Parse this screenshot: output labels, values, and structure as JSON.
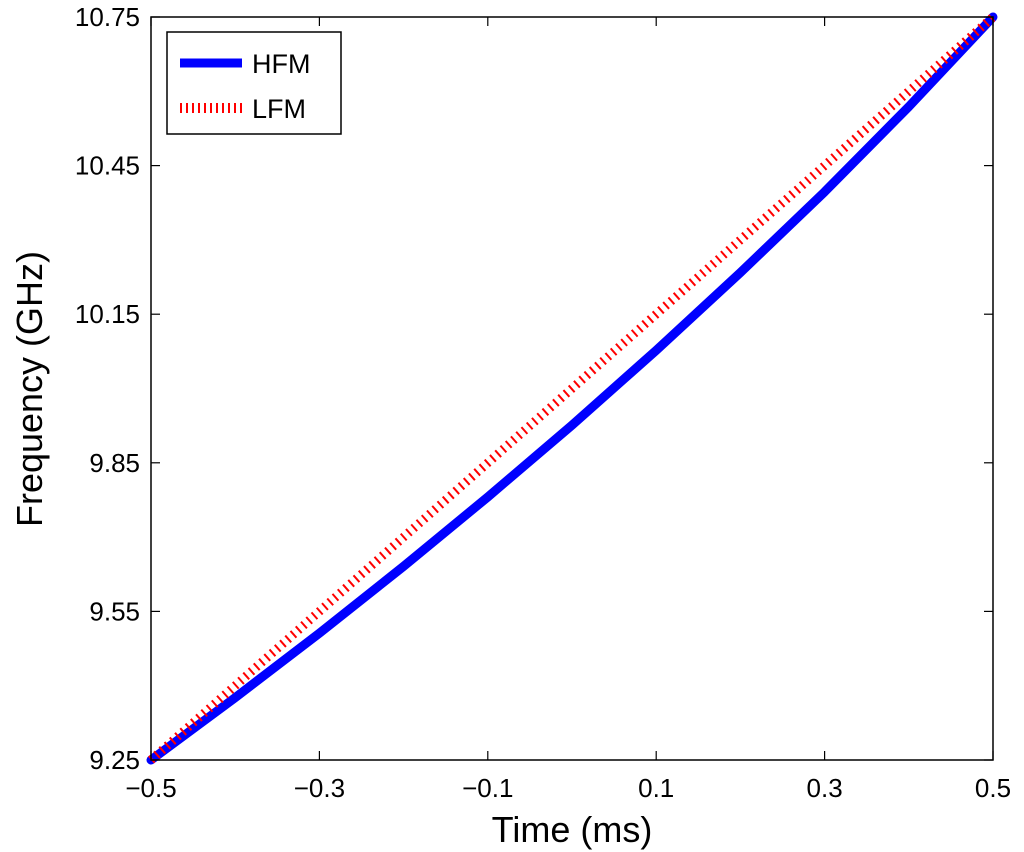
{
  "chart_data": {
    "type": "line",
    "title": "",
    "xlabel": "Time (ms)",
    "ylabel": "Frequency (GHz)",
    "xlim": [
      -0.5,
      0.5
    ],
    "ylim": [
      9.25,
      10.75
    ],
    "xticks": [
      -0.5,
      -0.3,
      -0.1,
      0.1,
      0.3,
      0.5
    ],
    "xtick_labels": [
      "−0.5",
      "−0.3",
      "−0.1",
      "0.1",
      "0.3",
      "0.5"
    ],
    "yticks": [
      9.25,
      9.55,
      9.85,
      10.15,
      10.45,
      10.75
    ],
    "ytick_labels": [
      "9.25",
      "9.55",
      "9.85",
      "10.15",
      "10.45",
      "10.75"
    ],
    "grid": false,
    "legend_position": "top-left",
    "series": [
      {
        "name": "HFM",
        "color": "#0000ff",
        "style": "solid",
        "x": [
          -0.5,
          -0.4,
          -0.3,
          -0.2,
          -0.1,
          0.0,
          0.1,
          0.2,
          0.3,
          0.4,
          0.5
        ],
        "y": [
          9.25,
          9.376,
          9.506,
          9.641,
          9.781,
          9.926,
          10.077,
          10.234,
          10.397,
          10.569,
          10.75
        ]
      },
      {
        "name": "LFM",
        "color": "#ff0000",
        "style": "dotted",
        "x": [
          -0.5,
          0.5
        ],
        "y": [
          9.25,
          10.75
        ]
      }
    ]
  }
}
